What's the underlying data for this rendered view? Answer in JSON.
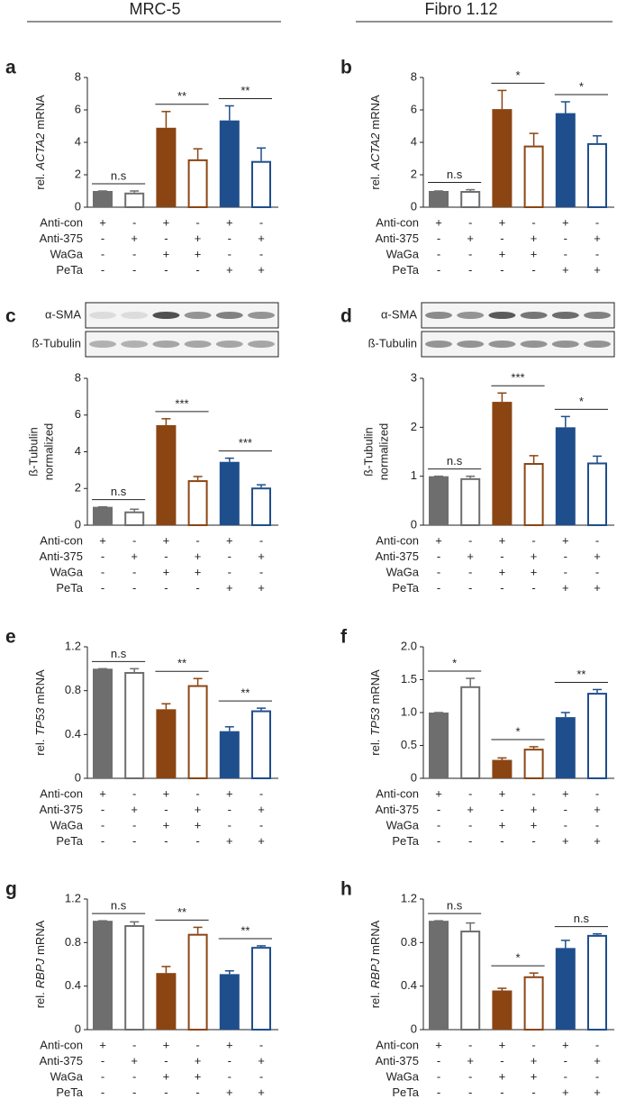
{
  "columns": [
    "MRC-5",
    "Fibro 1.12"
  ],
  "chart_data": [
    {
      "type": "bar",
      "panel": "a",
      "ylabel": {
        "prefix": "rel.",
        "gene": "ACTA2",
        "suffix": "mRNA"
      },
      "ylim": [
        0,
        8
      ],
      "yticks": [
        0,
        2,
        4,
        6,
        8
      ],
      "values": [
        1.0,
        0.9,
        4.9,
        2.95,
        5.35,
        2.85
      ],
      "errors": [
        0,
        0.1,
        1.0,
        0.65,
        0.9,
        0.8
      ],
      "colors": [
        "#6e6e6e",
        "#6e6e6e",
        "#8b4513",
        "#8b4513",
        "#1f4e8c",
        "#1f4e8c"
      ],
      "filled": [
        true,
        false,
        true,
        false,
        true,
        false
      ],
      "significance": [
        "n.s",
        "**",
        "**"
      ],
      "conditions": [
        {
          "name": "Anti-con",
          "signs": [
            "+",
            "-",
            "+",
            "-",
            "+",
            "-"
          ]
        },
        {
          "name": "Anti-375",
          "signs": [
            "-",
            "+",
            "-",
            "+",
            "-",
            "+"
          ]
        },
        {
          "name": "WaGa",
          "signs": [
            "-",
            "-",
            "+",
            "+",
            "-",
            "-"
          ]
        },
        {
          "name": "PeTa",
          "signs": [
            "-",
            "-",
            "-",
            "-",
            "+",
            "+"
          ]
        }
      ]
    },
    {
      "type": "bar",
      "panel": "b",
      "ylabel": {
        "prefix": "rel.",
        "gene": "ACTA2",
        "suffix": "mRNA"
      },
      "ylim": [
        0,
        8
      ],
      "yticks": [
        0,
        2,
        4,
        6,
        8
      ],
      "values": [
        1.0,
        1.0,
        6.05,
        3.8,
        5.8,
        3.95
      ],
      "errors": [
        0,
        0.08,
        1.15,
        0.75,
        0.7,
        0.45
      ],
      "colors": [
        "#6e6e6e",
        "#6e6e6e",
        "#8b4513",
        "#8b4513",
        "#1f4e8c",
        "#1f4e8c"
      ],
      "filled": [
        true,
        false,
        true,
        false,
        true,
        false
      ],
      "significance": [
        "n.s",
        "*",
        "*"
      ],
      "conditions": [
        {
          "name": "Anti-con",
          "signs": [
            "+",
            "-",
            "+",
            "-",
            "+",
            "-"
          ]
        },
        {
          "name": "Anti-375",
          "signs": [
            "-",
            "+",
            "-",
            "+",
            "-",
            "+"
          ]
        },
        {
          "name": "WaGa",
          "signs": [
            "-",
            "-",
            "+",
            "+",
            "-",
            "-"
          ]
        },
        {
          "name": "PeTa",
          "signs": [
            "-",
            "-",
            "-",
            "-",
            "+",
            "+"
          ]
        }
      ]
    },
    {
      "type": "bar",
      "panel": "c",
      "ylabel_lines": [
        "ß-Tubulin",
        "normalized"
      ],
      "blots": [
        "α-SMA",
        "ß-Tubulin"
      ],
      "ylim": [
        0,
        8
      ],
      "yticks": [
        0,
        2,
        4,
        6,
        8
      ],
      "values": [
        1.0,
        0.75,
        5.45,
        2.45,
        3.45,
        2.05
      ],
      "errors": [
        0,
        0.12,
        0.35,
        0.2,
        0.2,
        0.15
      ],
      "colors": [
        "#6e6e6e",
        "#6e6e6e",
        "#8b4513",
        "#8b4513",
        "#1f4e8c",
        "#1f4e8c"
      ],
      "filled": [
        true,
        false,
        true,
        false,
        true,
        false
      ],
      "significance": [
        "n.s",
        "***",
        "***"
      ],
      "conditions": [
        {
          "name": "Anti-con",
          "signs": [
            "+",
            "-",
            "+",
            "-",
            "+",
            "-"
          ]
        },
        {
          "name": "Anti-375",
          "signs": [
            "-",
            "+",
            "-",
            "+",
            "-",
            "+"
          ]
        },
        {
          "name": "WaGa",
          "signs": [
            "-",
            "-",
            "+",
            "+",
            "-",
            "-"
          ]
        },
        {
          "name": "PeTa",
          "signs": [
            "-",
            "-",
            "-",
            "-",
            "+",
            "+"
          ]
        }
      ]
    },
    {
      "type": "bar",
      "panel": "d",
      "ylabel_lines": [
        "ß-Tubulin",
        "normalized"
      ],
      "blots": [
        "α-SMA",
        "ß-Tubulin"
      ],
      "ylim": [
        0,
        3
      ],
      "yticks": [
        0,
        1,
        2,
        3
      ],
      "values": [
        1.0,
        0.96,
        2.52,
        1.27,
        2.0,
        1.28
      ],
      "errors": [
        0,
        0.04,
        0.18,
        0.15,
        0.22,
        0.13
      ],
      "colors": [
        "#6e6e6e",
        "#6e6e6e",
        "#8b4513",
        "#8b4513",
        "#1f4e8c",
        "#1f4e8c"
      ],
      "filled": [
        true,
        false,
        true,
        false,
        true,
        false
      ],
      "significance": [
        "n.s",
        "***",
        "*"
      ],
      "conditions": [
        {
          "name": "Anti-con",
          "signs": [
            "+",
            "-",
            "+",
            "-",
            "+",
            "-"
          ]
        },
        {
          "name": "Anti-375",
          "signs": [
            "-",
            "+",
            "-",
            "+",
            "-",
            "+"
          ]
        },
        {
          "name": "WaGa",
          "signs": [
            "-",
            "-",
            "+",
            "+",
            "-",
            "-"
          ]
        },
        {
          "name": "PeTa",
          "signs": [
            "-",
            "-",
            "-",
            "-",
            "+",
            "+"
          ]
        }
      ]
    },
    {
      "type": "bar",
      "panel": "e",
      "ylabel": {
        "prefix": "rel.",
        "gene": "TP53",
        "suffix": "mRNA"
      },
      "ylim": [
        0,
        1.2
      ],
      "yticks": [
        0,
        0.4,
        0.8,
        1.2
      ],
      "values": [
        1.0,
        0.97,
        0.63,
        0.85,
        0.43,
        0.62
      ],
      "errors": [
        0,
        0.03,
        0.05,
        0.06,
        0.04,
        0.02
      ],
      "colors": [
        "#6e6e6e",
        "#6e6e6e",
        "#8b4513",
        "#8b4513",
        "#1f4e8c",
        "#1f4e8c"
      ],
      "filled": [
        true,
        false,
        true,
        false,
        true,
        false
      ],
      "significance": [
        "n.s",
        "**",
        "**"
      ],
      "conditions": [
        {
          "name": "Anti-con",
          "signs": [
            "+",
            "-",
            "+",
            "-",
            "+",
            "-"
          ]
        },
        {
          "name": "Anti-375",
          "signs": [
            "-",
            "+",
            "-",
            "+",
            "-",
            "+"
          ]
        },
        {
          "name": "WaGa",
          "signs": [
            "-",
            "-",
            "+",
            "+",
            "-",
            "-"
          ]
        },
        {
          "name": "PeTa",
          "signs": [
            "-",
            "-",
            "-",
            "-",
            "+",
            "+"
          ]
        }
      ]
    },
    {
      "type": "bar",
      "panel": "f",
      "ylabel": {
        "prefix": "rel.",
        "gene": "TP53",
        "suffix": "mRNA"
      },
      "ylim": [
        0,
        2
      ],
      "yticks": [
        0,
        0.5,
        {
          "value": 1,
          "label": "1.0"
        },
        1.5,
        {
          "value": 2,
          "label": "2.0"
        }
      ],
      "values": [
        1.0,
        1.4,
        0.28,
        0.45,
        0.93,
        1.3
      ],
      "errors": [
        0,
        0.12,
        0.03,
        0.03,
        0.07,
        0.05
      ],
      "colors": [
        "#6e6e6e",
        "#6e6e6e",
        "#8b4513",
        "#8b4513",
        "#1f4e8c",
        "#1f4e8c"
      ],
      "filled": [
        true,
        false,
        true,
        false,
        true,
        false
      ],
      "significance": [
        "*",
        "*",
        "**"
      ],
      "conditions": [
        {
          "name": "Anti-con",
          "signs": [
            "+",
            "-",
            "+",
            "-",
            "+",
            "-"
          ]
        },
        {
          "name": "Anti-375",
          "signs": [
            "-",
            "+",
            "-",
            "+",
            "-",
            "+"
          ]
        },
        {
          "name": "WaGa",
          "signs": [
            "-",
            "-",
            "+",
            "+",
            "-",
            "-"
          ]
        },
        {
          "name": "PeTa",
          "signs": [
            "-",
            "-",
            "-",
            "-",
            "+",
            "+"
          ]
        }
      ]
    },
    {
      "type": "bar",
      "panel": "g",
      "ylabel": {
        "prefix": "rel.",
        "gene": "RBPJ",
        "suffix": "mRNA"
      },
      "ylim": [
        0,
        1.2
      ],
      "yticks": [
        0,
        0.4,
        0.8,
        1.2
      ],
      "values": [
        1.0,
        0.96,
        0.52,
        0.88,
        0.51,
        0.76
      ],
      "errors": [
        0,
        0.03,
        0.06,
        0.06,
        0.03,
        0.01
      ],
      "colors": [
        "#6e6e6e",
        "#6e6e6e",
        "#8b4513",
        "#8b4513",
        "#1f4e8c",
        "#1f4e8c"
      ],
      "filled": [
        true,
        false,
        true,
        false,
        true,
        false
      ],
      "significance": [
        "n.s",
        "**",
        "**"
      ],
      "conditions": [
        {
          "name": "Anti-con",
          "signs": [
            "+",
            "-",
            "+",
            "-",
            "+",
            "-"
          ]
        },
        {
          "name": "Anti-375",
          "signs": [
            "-",
            "+",
            "-",
            "+",
            "-",
            "+"
          ]
        },
        {
          "name": "WaGa",
          "signs": [
            "-",
            "-",
            "+",
            "+",
            "-",
            "-"
          ]
        },
        {
          "name": "PeTa",
          "signs": [
            "-",
            "-",
            "-",
            "-",
            "+",
            "+"
          ]
        }
      ]
    },
    {
      "type": "bar",
      "panel": "h",
      "ylabel": {
        "prefix": "rel.",
        "gene": "RBPJ",
        "suffix": "mRNA"
      },
      "ylim": [
        0,
        1.2
      ],
      "yticks": [
        0,
        0.4,
        0.8,
        1.2
      ],
      "values": [
        1.0,
        0.91,
        0.36,
        0.49,
        0.75,
        0.87
      ],
      "errors": [
        0,
        0.07,
        0.02,
        0.03,
        0.07,
        0.01
      ],
      "colors": [
        "#6e6e6e",
        "#6e6e6e",
        "#8b4513",
        "#8b4513",
        "#1f4e8c",
        "#1f4e8c"
      ],
      "filled": [
        true,
        false,
        true,
        false,
        true,
        false
      ],
      "significance": [
        "n.s",
        "*",
        "n.s"
      ],
      "conditions": [
        {
          "name": "Anti-con",
          "signs": [
            "+",
            "-",
            "+",
            "-",
            "+",
            "-"
          ]
        },
        {
          "name": "Anti-375",
          "signs": [
            "-",
            "+",
            "-",
            "+",
            "-",
            "+"
          ]
        },
        {
          "name": "WaGa",
          "signs": [
            "-",
            "-",
            "+",
            "+",
            "-",
            "-"
          ]
        },
        {
          "name": "PeTa",
          "signs": [
            "-",
            "-",
            "-",
            "-",
            "+",
            "+"
          ]
        }
      ]
    }
  ]
}
